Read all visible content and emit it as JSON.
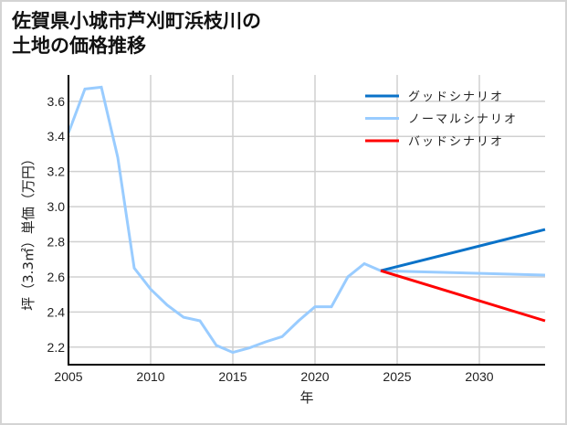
{
  "title": {
    "line1": "佐賀県小城市芦刈町浜枝川の",
    "line2": "土地の価格推移"
  },
  "chart_data": {
    "type": "line",
    "title": "佐賀県小城市芦刈町浜枝川の土地の価格推移",
    "xlabel": "年",
    "ylabel": "坪（3.3㎡）単価（万円）",
    "xlim": [
      2005,
      2034
    ],
    "ylim": [
      2.1,
      3.75
    ],
    "xticks": [
      2005,
      2010,
      2015,
      2020,
      2025,
      2030
    ],
    "yticks": [
      2.2,
      2.4,
      2.6,
      2.8,
      3.0,
      3.2,
      3.4,
      3.6
    ],
    "grid": true,
    "legend_position": "upper right",
    "series": [
      {
        "name": "グッドシナリオ",
        "color": "#0a72c8",
        "x": [
          2024,
          2034
        ],
        "y": [
          2.635,
          2.87
        ]
      },
      {
        "name": "ノーマルシナリオ",
        "color": "#99ccff",
        "x": [
          2005,
          2006,
          2007,
          2008,
          2009,
          2010,
          2011,
          2012,
          2013,
          2014,
          2015,
          2016,
          2017,
          2018,
          2019,
          2020,
          2021,
          2022,
          2023,
          2024,
          2034
        ],
        "y": [
          3.42,
          3.67,
          3.68,
          3.28,
          2.65,
          2.53,
          2.44,
          2.37,
          2.35,
          2.21,
          2.17,
          2.195,
          2.23,
          2.26,
          2.35,
          2.43,
          2.43,
          2.6,
          2.675,
          2.635,
          2.61
        ]
      },
      {
        "name": "バッドシナリオ",
        "color": "#ff0000",
        "x": [
          2024,
          2034
        ],
        "y": [
          2.635,
          2.35
        ]
      }
    ]
  },
  "colors": {
    "grid": "#d0d0d0",
    "axis": "#000000",
    "frame": "#d4d4d4"
  }
}
